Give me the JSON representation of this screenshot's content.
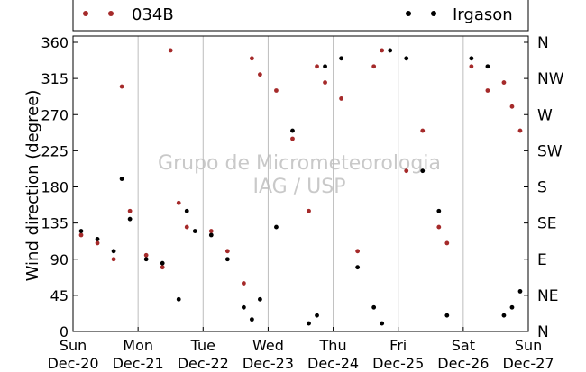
{
  "chart_data": {
    "type": "scatter",
    "title": "",
    "xlabel": "",
    "ylabel": "Wind direction (degree)",
    "xlim": [
      "2015-12-20",
      "2015-12-27"
    ],
    "ylim": [
      0,
      360
    ],
    "yticks": [
      0,
      45,
      90,
      135,
      180,
      225,
      270,
      315,
      360
    ],
    "xtick_labels": [
      {
        "day": "Sun",
        "date": "Dec-20"
      },
      {
        "day": "Mon",
        "date": "Dec-21"
      },
      {
        "day": "Tue",
        "date": "Dec-22"
      },
      {
        "day": "Wed",
        "date": "Dec-23"
      },
      {
        "day": "Thu",
        "date": "Dec-24"
      },
      {
        "day": "Fri",
        "date": "Dec-25"
      },
      {
        "day": "Sat",
        "date": "Dec-26"
      },
      {
        "day": "Sun",
        "date": "Dec-27"
      }
    ],
    "right_axis_labels": [
      "N",
      "NE",
      "E",
      "SE",
      "S",
      "SW",
      "W",
      "NW",
      "N"
    ],
    "grid": "vertical",
    "legend_placement": "top",
    "watermark": [
      "Grupo de Micrometeorologia",
      "IAG / USP"
    ],
    "series": [
      {
        "name": "034B",
        "color": "#a52a2a",
        "x": [
          "2015-12-20 03:00",
          "2015-12-20 09:00",
          "2015-12-20 15:00",
          "2015-12-20 18:00",
          "2015-12-20 21:00",
          "2015-12-21 03:00",
          "2015-12-21 09:00",
          "2015-12-21 12:00",
          "2015-12-21 15:00",
          "2015-12-21 18:00",
          "2015-12-22 03:00",
          "2015-12-22 09:00",
          "2015-12-22 15:00",
          "2015-12-22 18:00",
          "2015-12-22 21:00",
          "2015-12-23 03:00",
          "2015-12-23 09:00",
          "2015-12-23 15:00",
          "2015-12-23 18:00",
          "2015-12-23 21:00",
          "2015-12-24 03:00",
          "2015-12-24 09:00",
          "2015-12-24 15:00",
          "2015-12-24 18:00",
          "2015-12-25 03:00",
          "2015-12-25 09:00",
          "2015-12-25 15:00",
          "2015-12-25 18:00",
          "2015-12-26 03:00",
          "2015-12-26 09:00",
          "2015-12-26 15:00",
          "2015-12-26 18:00",
          "2015-12-26 21:00"
        ],
        "y": [
          120,
          110,
          90,
          305,
          150,
          95,
          80,
          350,
          160,
          130,
          125,
          100,
          60,
          340,
          320,
          300,
          240,
          150,
          330,
          310,
          290,
          100,
          330,
          350,
          200,
          250,
          130,
          110,
          330,
          300,
          310,
          280,
          250
        ]
      },
      {
        "name": "Irgason",
        "color": "#000000",
        "x": [
          "2015-12-20 03:00",
          "2015-12-20 09:00",
          "2015-12-20 15:00",
          "2015-12-20 18:00",
          "2015-12-20 21:00",
          "2015-12-21 03:00",
          "2015-12-21 09:00",
          "2015-12-21 15:00",
          "2015-12-21 18:00",
          "2015-12-21 21:00",
          "2015-12-22 03:00",
          "2015-12-22 09:00",
          "2015-12-22 15:00",
          "2015-12-22 18:00",
          "2015-12-22 21:00",
          "2015-12-23 03:00",
          "2015-12-23 09:00",
          "2015-12-23 15:00",
          "2015-12-23 18:00",
          "2015-12-23 21:00",
          "2015-12-24 03:00",
          "2015-12-24 09:00",
          "2015-12-24 15:00",
          "2015-12-24 18:00",
          "2015-12-24 21:00",
          "2015-12-25 03:00",
          "2015-12-25 09:00",
          "2015-12-25 15:00",
          "2015-12-25 18:00",
          "2015-12-26 03:00",
          "2015-12-26 09:00",
          "2015-12-26 15:00",
          "2015-12-26 18:00",
          "2015-12-26 21:00"
        ],
        "y": [
          125,
          115,
          100,
          190,
          140,
          90,
          85,
          40,
          150,
          125,
          120,
          90,
          30,
          15,
          40,
          130,
          250,
          10,
          20,
          330,
          340,
          80,
          30,
          10,
          350,
          340,
          200,
          150,
          20,
          340,
          330,
          20,
          30,
          50
        ]
      }
    ]
  }
}
